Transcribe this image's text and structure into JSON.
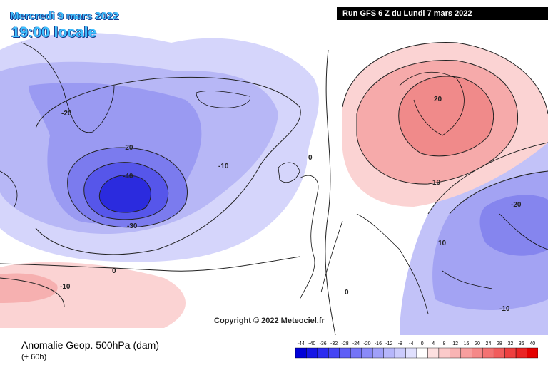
{
  "header": {
    "date": "Mercredi 9 mars 2022",
    "time": "19:00 locale",
    "run": "Run GFS 6 Z du Lundi 7 mars 2022"
  },
  "footer": {
    "title": "Anomalie Geop. 500hPa (dam)",
    "subtitle": "(+ 60h)",
    "copyright": "Copyright © 2022 Meteociel.fr"
  },
  "contour_labels": [
    {
      "text": "-20"
    },
    {
      "text": "-20"
    },
    {
      "text": "-40"
    },
    {
      "text": "-30"
    },
    {
      "text": "-10"
    },
    {
      "text": "0"
    },
    {
      "text": "0"
    },
    {
      "text": "-10"
    },
    {
      "text": "20"
    },
    {
      "text": "10"
    },
    {
      "text": "-20"
    },
    {
      "text": "10"
    },
    {
      "text": "0"
    },
    {
      "text": "-10"
    }
  ],
  "legend": {
    "values": [
      "-44",
      "-40",
      "-36",
      "-32",
      "-28",
      "-24",
      "-20",
      "-16",
      "-12",
      "-8",
      "-4",
      "0",
      "4",
      "8",
      "12",
      "16",
      "20",
      "24",
      "28",
      "32",
      "36",
      "40"
    ],
    "colors": [
      "#0000d8",
      "#1515e6",
      "#2b2bf0",
      "#4545f4",
      "#5e5ef6",
      "#7474f7",
      "#8a8af8",
      "#a0a0f9",
      "#b6b6fb",
      "#cbcbfc",
      "#e0e0fe",
      "#ffffff",
      "#fde0e0",
      "#fbcaca",
      "#f9b4b4",
      "#f79e9e",
      "#f58888",
      "#f37272",
      "#f15c5c",
      "#ee4040",
      "#ea2424",
      "#e40000"
    ]
  }
}
